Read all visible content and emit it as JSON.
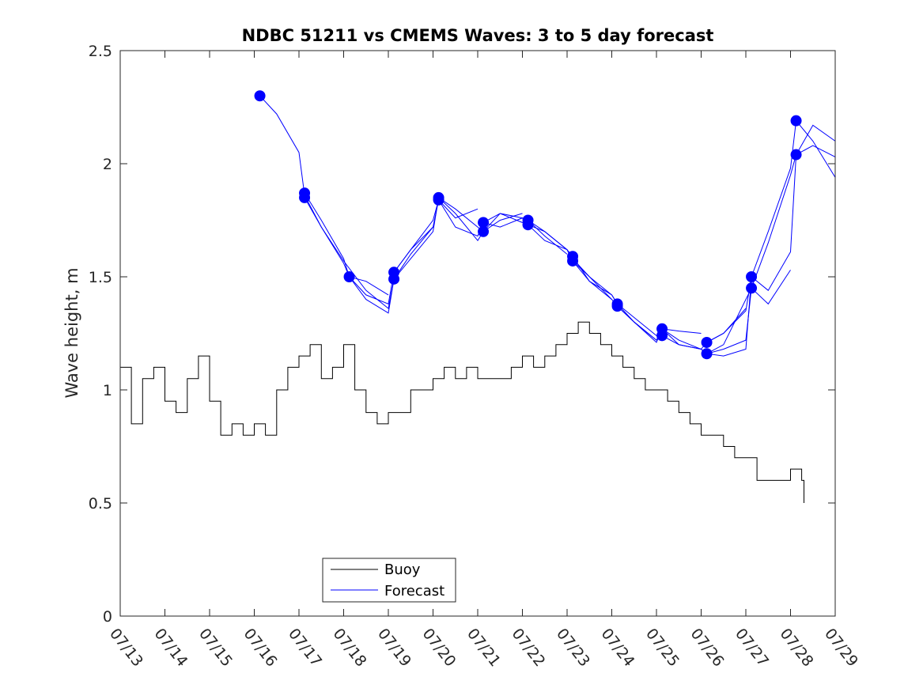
{
  "chart_data": {
    "type": "line",
    "title": "NDBC 51211 vs CMEMS Waves: 3 to 5 day forecast",
    "xlabel": "",
    "ylabel": "Wave height, m",
    "xlim": [
      "07/13",
      "07/29"
    ],
    "ylim": [
      0,
      2.5
    ],
    "x_ticks": [
      "07/13",
      "07/14",
      "07/15",
      "07/16",
      "07/17",
      "07/18",
      "07/19",
      "07/20",
      "07/21",
      "07/22",
      "07/23",
      "07/24",
      "07/25",
      "07/26",
      "07/27",
      "07/28",
      "07/29"
    ],
    "y_ticks": [
      "0",
      "0.5",
      "1",
      "1.5",
      "2",
      "2.5"
    ],
    "grid": false,
    "legend": {
      "position": "bottom-left",
      "entries": [
        {
          "label": "Buoy",
          "color": "#000000"
        },
        {
          "label": "Forecast",
          "color": "#0000ff"
        }
      ]
    },
    "series": [
      {
        "name": "Buoy",
        "color": "#000000",
        "x": [
          "07/13 00:00",
          "07/13 06:00",
          "07/13 12:00",
          "07/13 18:00",
          "07/14 00:00",
          "07/14 06:00",
          "07/14 12:00",
          "07/14 18:00",
          "07/15 00:00",
          "07/15 06:00",
          "07/15 12:00",
          "07/15 18:00",
          "07/16 00:00",
          "07/16 06:00",
          "07/16 12:00",
          "07/16 18:00",
          "07/17 00:00",
          "07/17 06:00",
          "07/17 12:00",
          "07/17 18:00",
          "07/18 00:00",
          "07/18 06:00",
          "07/18 12:00",
          "07/18 18:00",
          "07/19 00:00",
          "07/19 06:00",
          "07/19 12:00",
          "07/19 18:00",
          "07/20 00:00",
          "07/20 06:00",
          "07/20 12:00",
          "07/20 18:00",
          "07/21 00:00",
          "07/21 06:00",
          "07/21 12:00",
          "07/21 18:00",
          "07/22 00:00",
          "07/22 06:00",
          "07/22 12:00",
          "07/22 18:00",
          "07/23 00:00",
          "07/23 06:00",
          "07/23 12:00",
          "07/23 18:00",
          "07/24 00:00",
          "07/24 06:00",
          "07/24 12:00",
          "07/24 18:00",
          "07/25 00:00",
          "07/25 06:00",
          "07/25 12:00",
          "07/25 18:00",
          "07/26 00:00",
          "07/26 06:00",
          "07/26 12:00",
          "07/26 18:00",
          "07/27 00:00",
          "07/27 06:00",
          "07/27 12:00",
          "07/27 18:00",
          "07/28 00:00",
          "07/28 06:00",
          "07/28 07:12"
        ],
        "values": [
          1.1,
          0.85,
          1.05,
          1.1,
          0.95,
          0.9,
          1.05,
          1.15,
          0.95,
          0.8,
          0.85,
          0.8,
          0.85,
          0.8,
          1.0,
          1.1,
          1.15,
          1.2,
          1.05,
          1.1,
          1.2,
          1.0,
          0.9,
          0.85,
          0.9,
          0.9,
          1.0,
          1.0,
          1.05,
          1.1,
          1.05,
          1.1,
          1.05,
          1.05,
          1.05,
          1.1,
          1.15,
          1.1,
          1.15,
          1.2,
          1.25,
          1.3,
          1.25,
          1.2,
          1.15,
          1.1,
          1.05,
          1.0,
          1.0,
          0.95,
          0.9,
          0.85,
          0.8,
          0.8,
          0.75,
          0.7,
          0.7,
          0.6,
          0.6,
          0.6,
          0.65,
          0.6,
          0.5
        ]
      },
      {
        "name": "Forecast",
        "color": "#0000ff",
        "x": [
          "07/16 03:00",
          "07/16 12:00",
          "07/17 00:00",
          "07/17 03:00",
          "07/17 12:00",
          "07/18 00:00",
          "07/18 03:00",
          "07/18 12:00",
          "07/19 00:00"
        ],
        "values": [
          2.3,
          2.22,
          2.05,
          1.86,
          1.72,
          1.56,
          1.5,
          1.48,
          1.42
        ]
      },
      {
        "name": "Forecast",
        "color": "#0000ff",
        "x": [
          "07/17 03:00",
          "07/17 12:00",
          "07/18 00:00",
          "07/18 03:00",
          "07/18 12:00",
          "07/19 00:00",
          "07/19 03:00",
          "07/19 12:00",
          "07/20 00:00"
        ],
        "values": [
          1.87,
          1.75,
          1.58,
          1.5,
          1.42,
          1.38,
          1.52,
          1.62,
          1.72
        ]
      },
      {
        "name": "Forecast",
        "color": "#0000ff",
        "x": [
          "07/17 03:00",
          "07/17 12:00",
          "07/18 00:00",
          "07/18 12:00",
          "07/19 00:00",
          "07/19 03:00",
          "07/19 12:00",
          "07/20 00:00",
          "07/20 03:00",
          "07/20 12:00",
          "07/21 00:00"
        ],
        "values": [
          1.85,
          1.72,
          1.57,
          1.44,
          1.36,
          1.49,
          1.6,
          1.72,
          1.84,
          1.76,
          1.8
        ]
      },
      {
        "name": "Forecast",
        "color": "#0000ff",
        "x": [
          "07/18 03:00",
          "07/18 12:00",
          "07/19 00:00",
          "07/19 03:00",
          "07/19 12:00",
          "07/20 00:00",
          "07/20 03:00",
          "07/20 12:00",
          "07/21 00:00",
          "07/21 03:00",
          "07/21 12:00",
          "07/22 00:00"
        ],
        "values": [
          1.5,
          1.4,
          1.34,
          1.49,
          1.58,
          1.7,
          1.85,
          1.8,
          1.72,
          1.7,
          1.75,
          1.78
        ]
      },
      {
        "name": "Forecast",
        "color": "#0000ff",
        "x": [
          "07/19 03:00",
          "07/19 12:00",
          "07/20 00:00",
          "07/20 03:00",
          "07/20 12:00",
          "07/21 00:00",
          "07/21 03:00",
          "07/21 12:00",
          "07/22 00:00",
          "07/22 03:00",
          "07/22 12:00",
          "07/23 00:00"
        ],
        "values": [
          1.52,
          1.62,
          1.75,
          1.84,
          1.72,
          1.68,
          1.74,
          1.72,
          1.76,
          1.75,
          1.68,
          1.6
        ]
      },
      {
        "name": "Forecast",
        "color": "#0000ff",
        "x": [
          "07/20 03:00",
          "07/20 12:00",
          "07/21 00:00",
          "07/21 03:00",
          "07/21 12:00",
          "07/22 00:00",
          "07/22 03:00",
          "07/22 12:00",
          "07/23 00:00",
          "07/23 03:00",
          "07/23 12:00",
          "07/24 00:00"
        ],
        "values": [
          1.85,
          1.78,
          1.66,
          1.7,
          1.78,
          1.76,
          1.73,
          1.66,
          1.62,
          1.57,
          1.48,
          1.4
        ]
      },
      {
        "name": "Forecast",
        "color": "#0000ff",
        "x": [
          "07/21 03:00",
          "07/21 12:00",
          "07/22 00:00",
          "07/22 03:00",
          "07/22 12:00",
          "07/23 00:00",
          "07/23 03:00",
          "07/23 12:00",
          "07/24 00:00",
          "07/24 03:00",
          "07/24 12:00",
          "07/25 00:00"
        ],
        "values": [
          1.74,
          1.78,
          1.74,
          1.75,
          1.7,
          1.62,
          1.59,
          1.48,
          1.42,
          1.38,
          1.3,
          1.22
        ]
      },
      {
        "name": "Forecast",
        "color": "#0000ff",
        "x": [
          "07/22 03:00",
          "07/22 12:00",
          "07/23 00:00",
          "07/23 03:00",
          "07/23 12:00",
          "07/24 00:00",
          "07/24 03:00",
          "07/24 12:00",
          "07/25 00:00",
          "07/25 03:00",
          "07/25 12:00",
          "07/26 00:00"
        ],
        "values": [
          1.73,
          1.7,
          1.62,
          1.57,
          1.5,
          1.4,
          1.37,
          1.3,
          1.22,
          1.27,
          1.26,
          1.25
        ]
      },
      {
        "name": "Forecast",
        "color": "#0000ff",
        "x": [
          "07/23 03:00",
          "07/23 12:00",
          "07/24 00:00",
          "07/24 03:00",
          "07/24 12:00",
          "07/25 00:00",
          "07/25 03:00",
          "07/25 12:00",
          "07/26 00:00",
          "07/26 03:00",
          "07/26 12:00",
          "07/27 00:00"
        ],
        "values": [
          1.58,
          1.5,
          1.42,
          1.38,
          1.32,
          1.24,
          1.24,
          1.2,
          1.18,
          1.21,
          1.25,
          1.36
        ]
      },
      {
        "name": "Forecast",
        "color": "#0000ff",
        "x": [
          "07/24 03:00",
          "07/24 12:00",
          "07/25 00:00",
          "07/25 03:00",
          "07/25 12:00",
          "07/26 00:00",
          "07/26 03:00",
          "07/26 12:00",
          "07/27 00:00",
          "07/27 03:00",
          "07/27 12:00",
          "07/28 00:00"
        ],
        "values": [
          1.37,
          1.3,
          1.21,
          1.27,
          1.22,
          1.18,
          1.16,
          1.18,
          1.22,
          1.45,
          1.38,
          1.53
        ]
      },
      {
        "name": "Forecast",
        "color": "#0000ff",
        "x": [
          "07/25 03:00",
          "07/25 12:00",
          "07/26 00:00",
          "07/26 03:00",
          "07/26 12:00",
          "07/27 00:00",
          "07/27 03:00",
          "07/27 12:00",
          "07/28 00:00",
          "07/28 03:00",
          "07/28 12:00",
          "07/29 00:00"
        ],
        "values": [
          1.27,
          1.2,
          1.18,
          1.16,
          1.15,
          1.18,
          1.5,
          1.44,
          1.61,
          2.04,
          2.08,
          2.03
        ]
      },
      {
        "name": "Forecast",
        "color": "#0000ff",
        "x": [
          "07/26 03:00",
          "07/26 12:00",
          "07/27 00:00",
          "07/27 03:00",
          "07/27 12:00",
          "07/28 00:00",
          "07/28 03:00",
          "07/28 12:00",
          "07/29 00:00"
        ],
        "values": [
          1.21,
          1.25,
          1.35,
          1.5,
          1.7,
          1.98,
          2.19,
          2.1,
          1.94
        ]
      },
      {
        "name": "Forecast",
        "color": "#0000ff",
        "x": [
          "07/26 03:00",
          "07/26 12:00",
          "07/27 00:00",
          "07/27 03:00",
          "07/27 12:00",
          "07/28 00:00",
          "07/28 03:00",
          "07/28 12:00",
          "07/29 00:00"
        ],
        "values": [
          1.16,
          1.2,
          1.4,
          1.45,
          1.65,
          1.95,
          2.04,
          2.17,
          2.1
        ]
      }
    ],
    "markers": [
      {
        "x": "07/16 03:00",
        "y": 2.3
      },
      {
        "x": "07/17 03:00",
        "y": 1.87
      },
      {
        "x": "07/17 03:00",
        "y": 1.85
      },
      {
        "x": "07/18 03:00",
        "y": 1.5
      },
      {
        "x": "07/19 03:00",
        "y": 1.52
      },
      {
        "x": "07/19 03:00",
        "y": 1.49
      },
      {
        "x": "07/20 03:00",
        "y": 1.85
      },
      {
        "x": "07/20 03:00",
        "y": 1.84
      },
      {
        "x": "07/21 03:00",
        "y": 1.74
      },
      {
        "x": "07/21 03:00",
        "y": 1.7
      },
      {
        "x": "07/22 03:00",
        "y": 1.75
      },
      {
        "x": "07/22 03:00",
        "y": 1.73
      },
      {
        "x": "07/23 03:00",
        "y": 1.59
      },
      {
        "x": "07/23 03:00",
        "y": 1.57
      },
      {
        "x": "07/24 03:00",
        "y": 1.38
      },
      {
        "x": "07/24 03:00",
        "y": 1.37
      },
      {
        "x": "07/25 03:00",
        "y": 1.27
      },
      {
        "x": "07/25 03:00",
        "y": 1.24
      },
      {
        "x": "07/26 03:00",
        "y": 1.21
      },
      {
        "x": "07/26 03:00",
        "y": 1.16
      },
      {
        "x": "07/27 03:00",
        "y": 1.5
      },
      {
        "x": "07/27 03:00",
        "y": 1.45
      },
      {
        "x": "07/28 03:00",
        "y": 2.19
      },
      {
        "x": "07/28 03:00",
        "y": 2.04
      }
    ]
  }
}
